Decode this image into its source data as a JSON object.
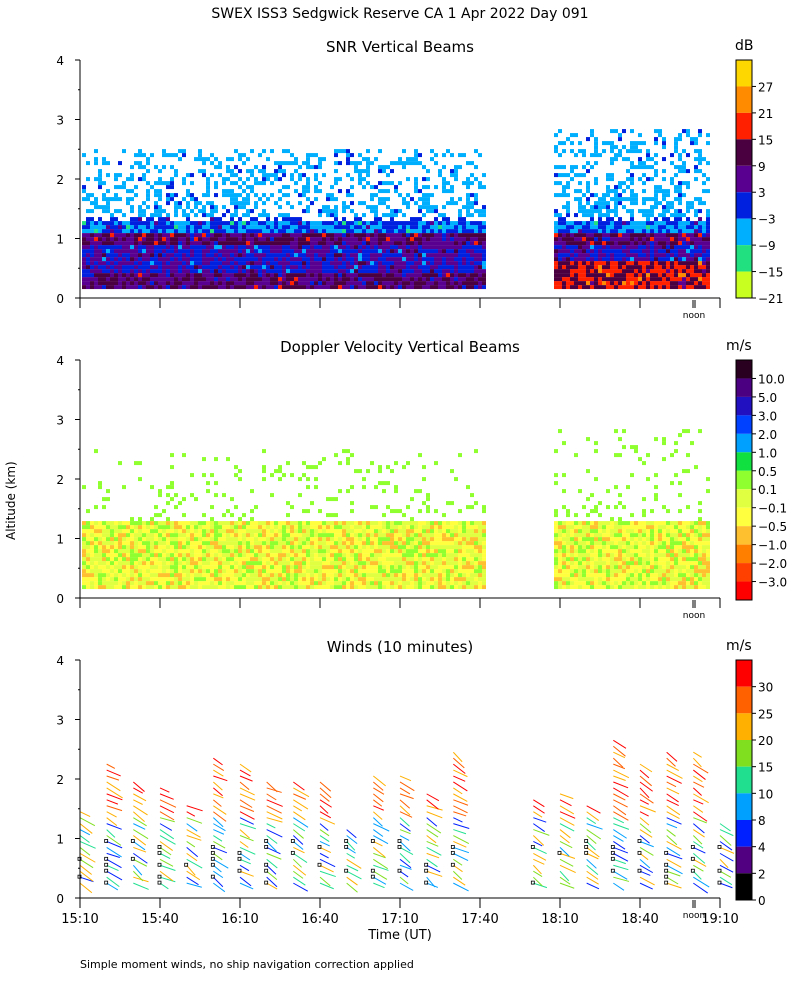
{
  "header": {
    "title": "SWEX ISS3 Sedgwick Reserve CA    1 Apr 2022 Day 091",
    "footer": "Simple moment winds, no ship navigation correction applied",
    "ylabel": "Altitude (km)",
    "xlabel": "Time (UT)",
    "noon_label": "noon"
  },
  "chart_data": [
    {
      "type": "heatmap",
      "title": "SNR Vertical Beams",
      "colorbar_unit": "dB",
      "colorbar_ticks": [
        "27",
        "21",
        "15",
        "9",
        "3",
        "−3",
        "−9",
        "−15",
        "−21"
      ],
      "colorbar_colors": [
        "#ffd700",
        "#ff8c00",
        "#ff2000",
        "#4a0040",
        "#5a0090",
        "#0020e0",
        "#00b0ff",
        "#20e080",
        "#c8ff20"
      ],
      "ylim": [
        0,
        4
      ],
      "yticks": [
        0,
        1,
        2,
        3,
        4
      ],
      "xlim": [
        "15:10",
        "19:10"
      ],
      "data_gap": [
        "17:50",
        "18:10"
      ]
    },
    {
      "type": "heatmap",
      "title": "Doppler Velocity Vertical Beams",
      "colorbar_unit": "m/s",
      "colorbar_ticks": [
        "10.0",
        "5.0",
        "3.0",
        "2.0",
        "1.0",
        "0.5",
        "0.1",
        "−0.1",
        "−0.5",
        "−1.0",
        "−2.0",
        "−3.0"
      ],
      "colorbar_colors": [
        "#2a0020",
        "#4a0080",
        "#2010c0",
        "#0040ff",
        "#00a0ff",
        "#10e040",
        "#90ff30",
        "#e0ff40",
        "#ffff40",
        "#ffc030",
        "#ff8000",
        "#ff4000",
        "#ff0000"
      ],
      "ylim": [
        0,
        4
      ],
      "yticks": [
        0,
        1,
        2,
        3,
        4
      ],
      "xlim": [
        "15:10",
        "19:10"
      ],
      "data_gap": [
        "17:50",
        "18:10"
      ]
    },
    {
      "type": "scatter",
      "title": "Winds (10 minutes)",
      "colorbar_unit": "m/s",
      "colorbar_ticks": [
        "30",
        "25",
        "20",
        "15",
        "10",
        "8",
        "4",
        "2",
        "0"
      ],
      "colorbar_colors": [
        "#ff0000",
        "#ff6000",
        "#ffb000",
        "#80e020",
        "#20e090",
        "#00a0ff",
        "#0020ff",
        "#500080",
        "#000000"
      ],
      "ylim": [
        0,
        4
      ],
      "yticks": [
        0,
        1,
        2,
        3,
        4
      ],
      "x_ticks": [
        "15:10",
        "15:40",
        "16:10",
        "16:40",
        "17:10",
        "17:40",
        "18:10",
        "18:40",
        "19:10"
      ],
      "profile_times": [
        "15:10",
        "15:20",
        "15:30",
        "15:40",
        "15:50",
        "16:00",
        "16:10",
        "16:20",
        "16:30",
        "16:40",
        "16:50",
        "17:00",
        "17:10",
        "17:20",
        "17:30",
        "18:00",
        "18:10",
        "18:20",
        "18:30",
        "18:40",
        "18:50",
        "19:00",
        "19:10"
      ]
    }
  ]
}
